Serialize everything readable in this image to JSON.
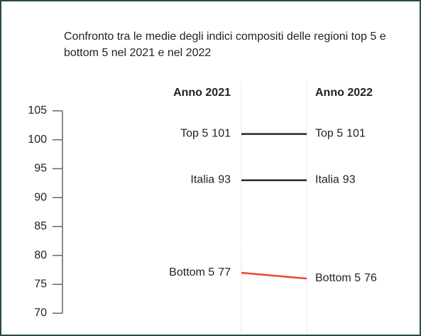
{
  "chart_data": {
    "type": "slope",
    "title": "Confronto tra le medie degli indici compositi delle regioni top 5 e bottom 5 nel 2021 e nel 2022",
    "categories": [
      "Anno 2021",
      "Anno 2022"
    ],
    "series": [
      {
        "name": "Top 5",
        "color": "#1c2b26",
        "values": [
          101,
          101
        ]
      },
      {
        "name": "Italia",
        "color": "#1c2b26",
        "values": [
          93,
          93
        ]
      },
      {
        "name": "Bottom 5",
        "color": "#e8472d",
        "values": [
          77,
          76
        ]
      }
    ],
    "ylim": [
      70,
      105
    ],
    "yticks": [
      70,
      75,
      80,
      85,
      90,
      95,
      100,
      105
    ]
  }
}
